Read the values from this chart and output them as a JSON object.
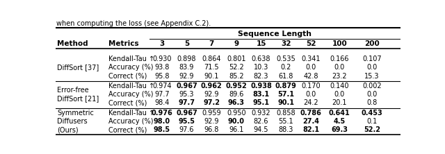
{
  "title_text": "Sequence Length",
  "caption": "when computing the loss (see Appendix C.2).",
  "header_labels": [
    "Method",
    "Metrics",
    "3",
    "5",
    "7",
    "9",
    "15",
    "32",
    "52",
    "100",
    "200"
  ],
  "methods": [
    {
      "name": "DiffSort [37]",
      "rows": [
        {
          "metric": "Kendall-Tau ↑",
          "values": [
            "0.930",
            "0.898",
            "0.864",
            "0.801",
            "0.638",
            "0.535",
            "0.341",
            "0.166",
            "0.107"
          ],
          "bold": [
            false,
            false,
            false,
            false,
            false,
            false,
            false,
            false,
            false
          ]
        },
        {
          "metric": "Accuracy (%)",
          "values": [
            "93.8",
            "83.9",
            "71.5",
            "52.2",
            "10.3",
            "0.2",
            "0.0",
            "0.0",
            "0.0"
          ],
          "bold": [
            false,
            false,
            false,
            false,
            false,
            false,
            false,
            false,
            false
          ]
        },
        {
          "metric": "Correct (%)",
          "values": [
            "95.8",
            "92.9",
            "90.1",
            "85.2",
            "82.3",
            "61.8",
            "42.8",
            "23.2",
            "15.3"
          ],
          "bold": [
            false,
            false,
            false,
            false,
            false,
            false,
            false,
            false,
            false
          ]
        }
      ]
    },
    {
      "name": "Error-free\nDiffSort [21]",
      "rows": [
        {
          "metric": "Kendall-Tau ↑",
          "values": [
            "0.974",
            "0.967",
            "0.962",
            "0.952",
            "0.938",
            "0.879",
            "0.170",
            "0.140",
            "0.002"
          ],
          "bold": [
            false,
            true,
            true,
            true,
            true,
            true,
            false,
            false,
            false
          ]
        },
        {
          "metric": "Accuracy (%)",
          "values": [
            "97.7",
            "95.3",
            "92.9",
            "89.6",
            "83.1",
            "57.1",
            "0.0",
            "0.0",
            "0.0"
          ],
          "bold": [
            false,
            false,
            false,
            false,
            true,
            true,
            false,
            false,
            false
          ]
        },
        {
          "metric": "Correct (%)",
          "values": [
            "98.4",
            "97.7",
            "97.2",
            "96.3",
            "95.1",
            "90.1",
            "24.2",
            "20.1",
            "0.8"
          ],
          "bold": [
            false,
            true,
            true,
            true,
            true,
            true,
            false,
            false,
            false
          ]
        }
      ]
    },
    {
      "name": "Symmetric\nDiffusers\n(Ours)",
      "rows": [
        {
          "metric": "Kendall-Tau ↑",
          "values": [
            "0.976",
            "0.967",
            "0.959",
            "0.950",
            "0.932",
            "0.858",
            "0.786",
            "0.641",
            "0.453"
          ],
          "bold": [
            true,
            true,
            false,
            false,
            false,
            false,
            true,
            true,
            true
          ]
        },
        {
          "metric": "Accuracy (%)",
          "values": [
            "98.0",
            "95.5",
            "92.9",
            "90.0",
            "82.6",
            "55.1",
            "27.4",
            "4.5",
            "0.1"
          ],
          "bold": [
            true,
            true,
            false,
            true,
            false,
            false,
            true,
            true,
            false
          ]
        },
        {
          "metric": "Correct (%)",
          "values": [
            "98.5",
            "97.6",
            "96.8",
            "96.1",
            "94.5",
            "88.3",
            "82.1",
            "69.3",
            "52.2"
          ],
          "bold": [
            true,
            false,
            false,
            false,
            false,
            false,
            true,
            true,
            true
          ]
        }
      ]
    }
  ]
}
